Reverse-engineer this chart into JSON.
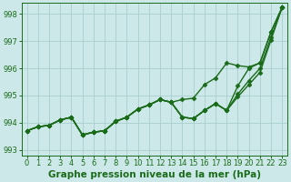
{
  "xlabel": "Graphe pression niveau de la mer (hPa)",
  "xlim": [
    -0.5,
    23.5
  ],
  "ylim": [
    992.8,
    998.4
  ],
  "yticks": [
    993,
    994,
    995,
    996,
    997,
    998
  ],
  "xticks": [
    0,
    1,
    2,
    3,
    4,
    5,
    6,
    7,
    8,
    9,
    10,
    11,
    12,
    13,
    14,
    15,
    16,
    17,
    18,
    19,
    20,
    21,
    22,
    23
  ],
  "bg_color": "#cde8e8",
  "grid_color": "#a8cece",
  "line_color": "#1a6b1a",
  "lines": [
    [
      993.7,
      993.85,
      993.9,
      994.1,
      994.2,
      993.55,
      993.65,
      993.7,
      994.05,
      994.2,
      994.5,
      994.65,
      994.85,
      994.75,
      994.85,
      994.9,
      995.4,
      995.65,
      996.2,
      996.1,
      996.05,
      996.2,
      997.35,
      998.25
    ],
    [
      993.7,
      993.85,
      993.9,
      994.1,
      994.2,
      993.55,
      993.65,
      993.7,
      994.05,
      994.2,
      994.5,
      994.65,
      994.85,
      994.75,
      994.2,
      994.15,
      994.45,
      994.7,
      994.45,
      995.35,
      996.0,
      996.2,
      997.35,
      998.25
    ],
    [
      993.7,
      993.85,
      993.9,
      994.1,
      994.2,
      993.55,
      993.65,
      993.7,
      994.05,
      994.2,
      994.5,
      994.65,
      994.85,
      994.75,
      994.2,
      994.15,
      994.45,
      994.7,
      994.45,
      995.05,
      995.55,
      996.0,
      997.15,
      998.25
    ],
    [
      993.7,
      993.85,
      993.9,
      994.1,
      994.2,
      993.55,
      993.65,
      993.7,
      994.05,
      994.2,
      994.5,
      994.65,
      994.85,
      994.75,
      994.2,
      994.15,
      994.45,
      994.7,
      994.45,
      994.95,
      995.4,
      995.85,
      997.05,
      998.25
    ]
  ],
  "marker": "D",
  "markersize": 2.5,
  "linewidth": 1.0,
  "tick_fontsize": 6.0,
  "label_fontsize": 7.5,
  "label_fontweight": "bold"
}
